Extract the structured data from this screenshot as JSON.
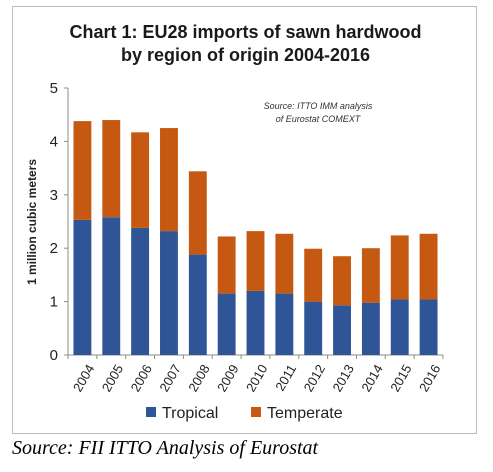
{
  "chart_data": {
    "type": "bar",
    "stacked": true,
    "title_line1": "Chart 1: EU28 imports of sawn hardwood",
    "title_line2": "by region of origin 2004-2016",
    "ylabel": "1 million cubic meters",
    "ylim": [
      0,
      5
    ],
    "yticks": [
      0,
      1,
      2,
      3,
      4,
      5
    ],
    "categories": [
      "2004",
      "2005",
      "2006",
      "2007",
      "2008",
      "2009",
      "2010",
      "2011",
      "2012",
      "2013",
      "2014",
      "2015",
      "2016"
    ],
    "series": [
      {
        "name": "Tropical",
        "color": "#2f5597",
        "values": [
          2.53,
          2.58,
          2.38,
          2.32,
          1.88,
          1.15,
          1.2,
          1.15,
          1.0,
          0.93,
          0.98,
          1.04,
          1.04
        ]
      },
      {
        "name": "Temperate",
        "color": "#c65911",
        "values": [
          1.85,
          1.82,
          1.79,
          1.93,
          1.56,
          1.07,
          1.12,
          1.12,
          0.99,
          0.92,
          1.02,
          1.2,
          1.23
        ]
      }
    ],
    "source_note_line1": "Source: ITTO IMM analysis",
    "source_note_line2": "of Eurostat COMEXT",
    "legend_position": "bottom",
    "grid": false
  },
  "caption": "Source: FII ITTO Analysis of Eurostat"
}
